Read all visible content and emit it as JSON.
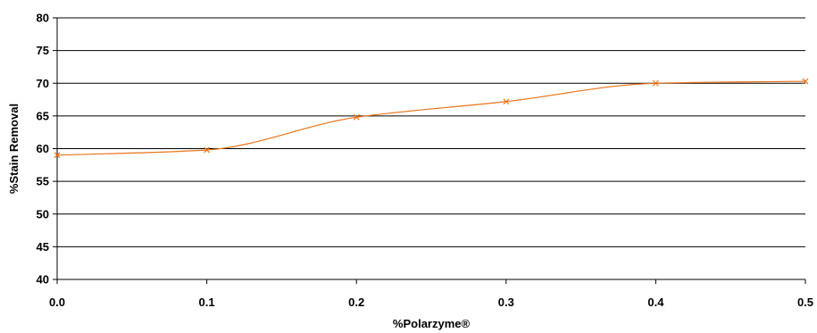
{
  "chart_data": {
    "type": "line",
    "title": "",
    "xlabel": "%Polarzyme®",
    "ylabel": "%Stain Removal",
    "x": [
      0.0,
      0.1,
      0.2,
      0.3,
      0.4,
      0.5
    ],
    "x_tick_labels": [
      "0.0",
      "0.1",
      "0.2",
      "0.3",
      "0.4",
      "0.5"
    ],
    "xlim": [
      0.0,
      0.5
    ],
    "ylim": [
      40,
      80
    ],
    "y_ticks": [
      40,
      45,
      50,
      55,
      60,
      65,
      70,
      75,
      80
    ],
    "grid": "horizontal",
    "legend": "none",
    "series": [
      {
        "values": [
          59.0,
          59.8,
          64.8,
          67.2,
          70.0,
          70.3
        ],
        "color": "#E8731A",
        "marker": "x",
        "smooth": true
      }
    ]
  }
}
